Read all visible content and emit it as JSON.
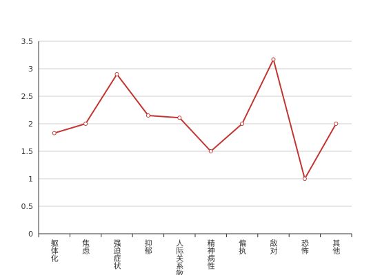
{
  "chart_data": {
    "type": "line",
    "categories": [
      "躯体化",
      "焦虑",
      "强迫症状",
      "抑郁",
      "人际关系敏感",
      "精神病性",
      "偏执",
      "敌对",
      "恐怖",
      "其他"
    ],
    "values": [
      1.83,
      2.0,
      2.9,
      2.15,
      2.11,
      1.5,
      2.0,
      3.17,
      1.0,
      2.0
    ],
    "color": "#c23531",
    "ylim": [
      0,
      3.5
    ],
    "yticks": [
      0,
      0.5,
      1,
      1.5,
      2,
      2.5,
      3,
      3.5
    ],
    "grid": true
  }
}
